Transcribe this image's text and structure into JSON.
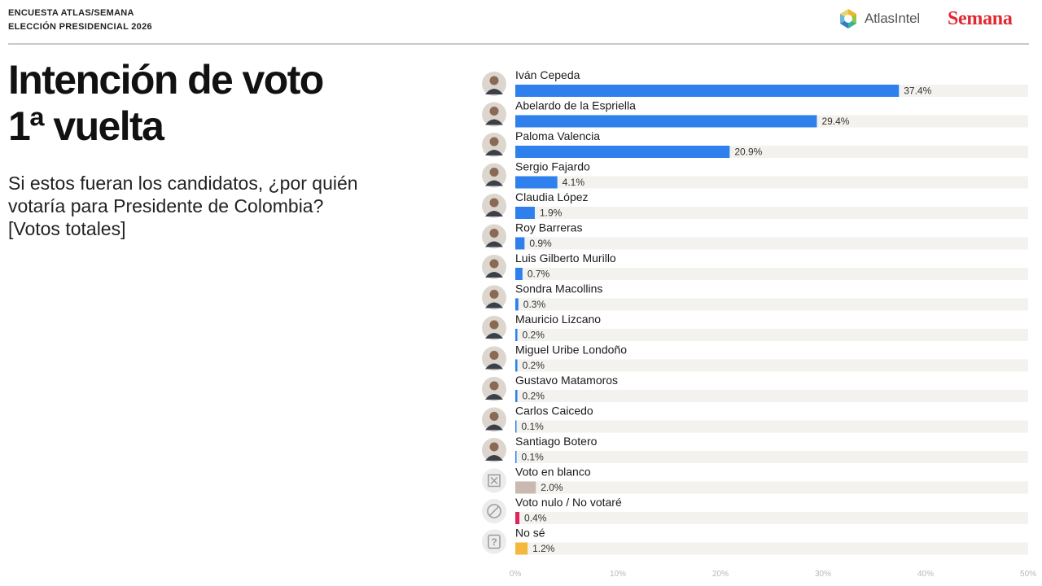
{
  "header": {
    "line1": "ENCUESTA ATLAS/SEMANA",
    "line2": "ELECCIÓN PRESIDENCIAL 2026",
    "logo_atlas": "AtlasIntel",
    "logo_semana": "Semana"
  },
  "chart_data": {
    "type": "bar",
    "orientation": "horizontal",
    "title": "Intención de voto\n1ª vuelta",
    "subtitle": "Si estos fueran los candidatos, ¿por quién\nvotaría para Presidente de Colombia?\n[Votos totales]",
    "xlim": [
      0,
      50
    ],
    "x_ticks": [
      0,
      10,
      20,
      30,
      40,
      50
    ],
    "x_tick_labels": [
      "0%",
      "10%",
      "20%",
      "30%",
      "40%",
      "50%"
    ],
    "grid": false,
    "categories": [
      "Iván Cepeda",
      "Abelardo de la Espriella",
      "Paloma Valencia",
      "Sergio Fajardo",
      "Claudia López",
      "Roy Barreras",
      "Luis Gilberto Murillo",
      "Sondra Macollins",
      "Mauricio Lizcano",
      "Miguel Uribe Londoño",
      "Gustavo Matamoros",
      "Carlos Caicedo",
      "Santiago Botero",
      "Voto en blanco",
      "Voto nulo / No votaré",
      "No sé"
    ],
    "values": [
      37.4,
      29.4,
      20.9,
      4.1,
      1.9,
      0.9,
      0.7,
      0.3,
      0.2,
      0.2,
      0.2,
      0.1,
      0.1,
      2.0,
      0.4,
      1.2
    ],
    "value_labels": [
      "37.4%",
      "29.4%",
      "20.9%",
      "4.1%",
      "1.9%",
      "0.9%",
      "0.7%",
      "0.3%",
      "0.2%",
      "0.2%",
      "0.2%",
      "0.1%",
      "0.1%",
      "2.0%",
      "0.4%",
      "1.2%"
    ],
    "bar_colors": [
      "#2f80ed",
      "#2f80ed",
      "#2f80ed",
      "#2f80ed",
      "#2f80ed",
      "#2f80ed",
      "#2f80ed",
      "#2f80ed",
      "#2f80ed",
      "#2f80ed",
      "#2f80ed",
      "#2f80ed",
      "#2f80ed",
      "#c9b9b0",
      "#e0245e",
      "#f4b93c"
    ],
    "icons": [
      "avatar-photo-icon",
      "avatar-photo-icon",
      "avatar-photo-icon",
      "avatar-photo-icon",
      "avatar-photo-icon",
      "avatar-photo-icon",
      "avatar-photo-icon",
      "avatar-photo-icon",
      "avatar-photo-icon",
      "avatar-photo-icon",
      "avatar-photo-icon",
      "avatar-photo-icon",
      "avatar-photo-icon",
      "blank-vote-icon",
      "null-vote-icon",
      "question-icon"
    ],
    "track_color": "#f4f2ee"
  }
}
